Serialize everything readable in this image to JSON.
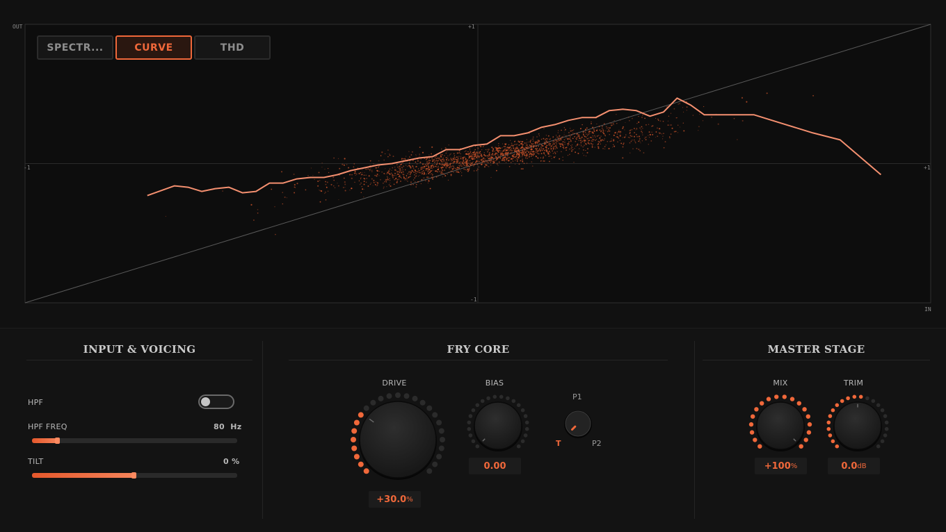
{
  "display": {
    "tabs": [
      {
        "label": "SPECTR...",
        "active": false
      },
      {
        "label": "CURVE",
        "active": true
      },
      {
        "label": "THD",
        "active": false
      }
    ],
    "axis": {
      "out": "OUT",
      "in": "IN",
      "top": "+1",
      "bottom": "-1",
      "left": "-1",
      "right": "+1"
    },
    "colors": {
      "accent": "#f0683a",
      "curve": "#f59070",
      "scatter": "#d9582c"
    }
  },
  "chart_data": {
    "type": "line",
    "xlim": [
      -1,
      1
    ],
    "ylim": [
      -1,
      1
    ],
    "series": [
      {
        "role": "transfer-curve",
        "x": [
          -0.73,
          -0.67,
          -0.64,
          -0.61,
          -0.58,
          -0.55,
          -0.52,
          -0.49,
          -0.46,
          -0.43,
          -0.4,
          -0.37,
          -0.34,
          -0.31,
          -0.28,
          -0.25,
          -0.22,
          -0.19,
          -0.16,
          -0.13,
          -0.1,
          -0.07,
          -0.04,
          -0.01,
          0.02,
          0.05,
          0.08,
          0.11,
          0.14,
          0.17,
          0.2,
          0.23,
          0.26,
          0.29,
          0.32,
          0.35,
          0.38,
          0.41,
          0.44,
          0.47,
          0.5,
          0.54,
          0.61,
          0.67,
          0.74,
          0.8,
          0.89
        ],
        "y": [
          -0.23,
          -0.16,
          -0.17,
          -0.2,
          -0.18,
          -0.17,
          -0.21,
          -0.2,
          -0.14,
          -0.14,
          -0.11,
          -0.1,
          -0.1,
          -0.08,
          -0.05,
          -0.03,
          -0.01,
          0.0,
          0.02,
          0.04,
          0.05,
          0.1,
          0.1,
          0.13,
          0.14,
          0.2,
          0.2,
          0.22,
          0.26,
          0.28,
          0.31,
          0.33,
          0.33,
          0.38,
          0.39,
          0.38,
          0.34,
          0.37,
          0.47,
          0.42,
          0.35,
          0.35,
          0.35,
          0.29,
          0.22,
          0.17,
          -0.08
        ]
      },
      {
        "role": "unity-reference",
        "x": [
          -1,
          1
        ],
        "y": [
          -1,
          1
        ]
      }
    ],
    "scatter": {
      "center_x": 0.04,
      "center_y": 0.06,
      "spread_x": 0.18,
      "count": 2000
    }
  },
  "sections": {
    "input": {
      "title": "INPUT & VOICING",
      "hpf": {
        "label": "HPF",
        "on": false
      },
      "hpf_freq": {
        "label": "HPF FREQ",
        "value": "80",
        "unit": "Hz",
        "fraction": 0.13
      },
      "tilt": {
        "label": "TILT",
        "value": "0",
        "unit": "%",
        "fraction": 0.5
      }
    },
    "core": {
      "title": "FRY CORE",
      "drive": {
        "label": "DRIVE",
        "value": "+30.0",
        "unit": "%",
        "fraction": 0.3
      },
      "bias": {
        "label": "BIAS",
        "value": "0.00",
        "fraction": 0.0
      },
      "mode": {
        "label_top": "P1",
        "label_left": "T",
        "label_right": "P2",
        "selected": "T"
      }
    },
    "master": {
      "title": "MASTER STAGE",
      "mix": {
        "label": "MIX",
        "value": "+100",
        "unit": "%",
        "fraction": 1.0
      },
      "trim": {
        "label": "TRIM",
        "value": "0.0",
        "unit": "dB",
        "fraction": 0.5
      }
    }
  }
}
